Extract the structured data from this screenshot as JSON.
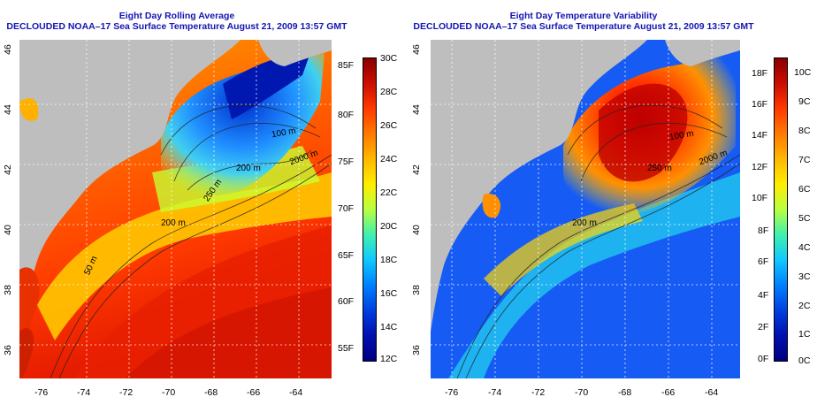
{
  "left": {
    "title_line1": "Eight Day Rolling Average",
    "title_line2": "DECLOUDED NOAA–17 Sea Surface Temperature August 21, 2009 13:57 GMT",
    "lon_ticks": [
      "-76",
      "-74",
      "-72",
      "-70",
      "-68",
      "-66",
      "-64"
    ],
    "lat_ticks": [
      "36",
      "38",
      "40",
      "42",
      "44",
      "46"
    ],
    "contour_labels": [
      "50 m",
      "200 m",
      "250 m",
      "100 m",
      "2000 m",
      "200 m"
    ],
    "colorbar": {
      "fahrenheit": [
        "85F",
        "80F",
        "75F",
        "70F",
        "65F",
        "60F",
        "55F"
      ],
      "celsius": [
        "30C",
        "28C",
        "26C",
        "24C",
        "22C",
        "20C",
        "18C",
        "16C",
        "14C",
        "12C"
      ],
      "colors": [
        "#990000",
        "#dd1a00",
        "#ff4a00",
        "#ff8a00",
        "#ffd200",
        "#e8ff20",
        "#80ff70",
        "#20e0e0",
        "#00a0ff",
        "#0050e0",
        "#0010c0",
        "#000090"
      ]
    }
  },
  "right": {
    "title_line1": "Eight Day Temperature Variability",
    "title_line2": "DECLOUDED NOAA–17 Sea Surface Temperature August 21, 2009 13:57 GMT",
    "lon_ticks": [
      "-76",
      "-74",
      "-72",
      "-70",
      "-68",
      "-66",
      "-64"
    ],
    "lat_ticks": [
      "36",
      "38",
      "40",
      "42",
      "44",
      "46"
    ],
    "contour_labels": [
      "200 m",
      "2000 m",
      "100 m",
      "250 m"
    ],
    "colorbar": {
      "fahrenheit": [
        "18F",
        "16F",
        "14F",
        "12F",
        "10F",
        "8F",
        "6F",
        "4F",
        "2F",
        "0F"
      ],
      "celsius": [
        "10C",
        "9C",
        "8C",
        "7C",
        "6C",
        "5C",
        "4C",
        "3C",
        "2C",
        "1C",
        "0C"
      ],
      "colors": [
        "#990000",
        "#dd1a00",
        "#ff4a00",
        "#ff8a00",
        "#ffd200",
        "#e8ff20",
        "#80ff70",
        "#20e0e0",
        "#00a0ff",
        "#0050e0",
        "#0010c0",
        "#000090"
      ]
    }
  }
}
